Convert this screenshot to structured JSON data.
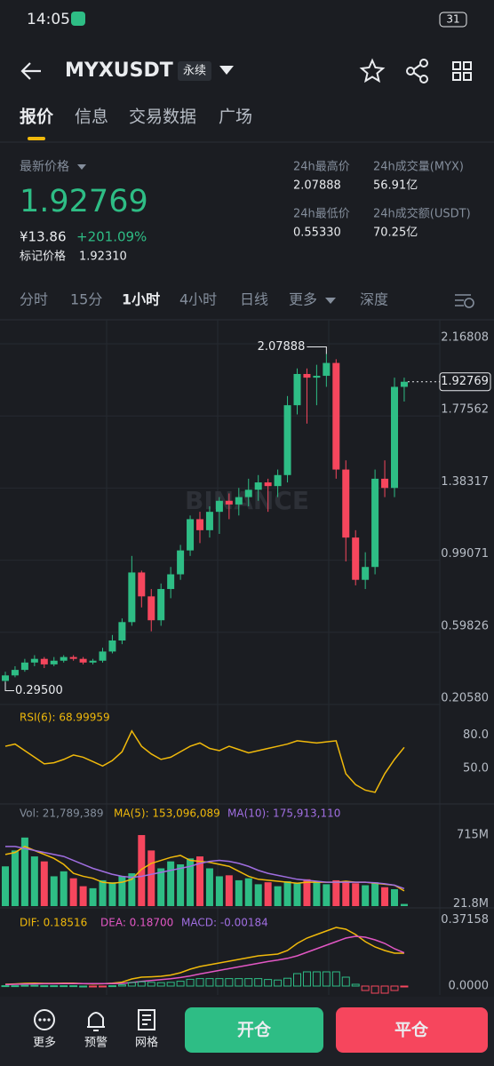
{
  "status_bar": {
    "time": "14:05",
    "battery": "31"
  },
  "header": {
    "symbol": "MYXUSDT",
    "tag": "永续"
  },
  "tabs": [
    {
      "label": "报价",
      "active": true
    },
    {
      "label": "信息",
      "active": false
    },
    {
      "label": "交易数据",
      "active": false
    },
    {
      "label": "广场",
      "active": false
    }
  ],
  "price_panel": {
    "last_price_label": "最新价格",
    "last_price": "1.92769",
    "cny": "¥13.86",
    "change": "+201.09%",
    "mark_label": "标记价格",
    "mark_price": "1.92310",
    "stats": [
      {
        "label": "24h最高价",
        "value": "2.07888"
      },
      {
        "label": "24h成交量(MYX)",
        "value": "56.91亿"
      },
      {
        "label": "24h最低价",
        "value": "0.55330"
      },
      {
        "label": "24h成交额(USDT)",
        "value": "70.25亿"
      }
    ]
  },
  "intervals": [
    {
      "label": "分时",
      "active": false
    },
    {
      "label": "15分",
      "active": false
    },
    {
      "label": "1小时",
      "active": true
    },
    {
      "label": "4小时",
      "active": false
    },
    {
      "label": "日线",
      "active": false
    },
    {
      "label": "更多",
      "active": false
    },
    {
      "label": "深度",
      "active": false
    }
  ],
  "chart_data": [
    {
      "type": "candlestick",
      "watermark": "BINANCE",
      "up_color": "#2ebd85",
      "down_color": "#f6465d",
      "high_label": "2.07888",
      "low_label": "0.29500",
      "last_label": "1.92769",
      "ylim": [
        0.2058,
        2.16808
      ],
      "yticks": [
        2.16808,
        1.77562,
        1.38317,
        0.99071,
        0.59826,
        {
          "value": 0.2058,
          "label": "0.20580"
        }
      ],
      "open": [
        0.3,
        0.33,
        0.36,
        0.4,
        0.42,
        0.39,
        0.41,
        0.43,
        0.42,
        0.4,
        0.41,
        0.46,
        0.52,
        0.62,
        0.89,
        0.76,
        0.63,
        0.8,
        0.88,
        1.01,
        1.18,
        1.12,
        1.22,
        1.28,
        1.26,
        1.3,
        1.34,
        1.38,
        1.36,
        1.42,
        1.8,
        1.97,
        1.95,
        1.96,
        2.03,
        1.45,
        1.08,
        0.85,
        0.92,
        1.4,
        1.35,
        1.9
      ],
      "high": [
        0.35,
        0.38,
        0.42,
        0.44,
        0.43,
        0.43,
        0.44,
        0.44,
        0.43,
        0.42,
        0.48,
        0.55,
        0.64,
        0.98,
        0.9,
        0.8,
        0.83,
        0.92,
        1.04,
        1.2,
        1.22,
        1.25,
        1.3,
        1.32,
        1.35,
        1.4,
        1.42,
        1.4,
        1.45,
        1.85,
        2.0,
        2.0,
        2.02,
        2.07888,
        2.05,
        1.5,
        1.12,
        1.0,
        1.45,
        1.5,
        1.95,
        1.95
      ],
      "low": [
        0.295,
        0.32,
        0.35,
        0.38,
        0.37,
        0.38,
        0.4,
        0.41,
        0.39,
        0.39,
        0.4,
        0.45,
        0.5,
        0.6,
        0.7,
        0.57,
        0.6,
        0.75,
        0.85,
        0.98,
        1.05,
        1.08,
        1.1,
        1.18,
        1.2,
        1.25,
        1.28,
        1.22,
        1.3,
        1.38,
        1.75,
        1.7,
        1.8,
        1.9,
        1.4,
        0.95,
        0.82,
        0.8,
        0.88,
        1.3,
        1.3,
        1.82
      ],
      "close": [
        0.33,
        0.36,
        0.4,
        0.42,
        0.39,
        0.41,
        0.43,
        0.42,
        0.4,
        0.41,
        0.46,
        0.52,
        0.62,
        0.89,
        0.76,
        0.63,
        0.8,
        0.88,
        1.01,
        1.18,
        1.12,
        1.22,
        1.28,
        1.26,
        1.3,
        1.34,
        1.38,
        1.36,
        1.42,
        1.8,
        1.97,
        1.95,
        1.96,
        2.03,
        1.45,
        1.08,
        0.85,
        0.92,
        1.4,
        1.35,
        1.9,
        1.92769
      ]
    },
    {
      "type": "line",
      "title": "RSI(6): 68.99959",
      "color": "#f0b90b",
      "ylim": [
        15,
        100
      ],
      "yticks": [
        {
          "value": 80,
          "label": "80.0"
        },
        {
          "value": 50,
          "label": "50.0"
        }
      ],
      "values": [
        70,
        72,
        66,
        60,
        54,
        55,
        58,
        62,
        60,
        56,
        52,
        57,
        65,
        84,
        70,
        63,
        58,
        60,
        65,
        70,
        73,
        68,
        66,
        70,
        67,
        64,
        66,
        68,
        70,
        72,
        75,
        74,
        73,
        74,
        75,
        45,
        35,
        30,
        28,
        45,
        58,
        68.99959
      ]
    },
    {
      "type": "bar",
      "ylim": [
        0,
        760
      ],
      "yticks": [
        {
          "value": 715,
          "label": "715M"
        },
        {
          "value": 21.8,
          "label": "21.8M"
        }
      ],
      "label": "Vol: 21,789,389",
      "values": [
        400,
        560,
        690,
        500,
        450,
        300,
        350,
        280,
        200,
        180,
        260,
        240,
        300,
        330,
        715,
        560,
        380,
        450,
        420,
        480,
        500,
        380,
        300,
        310,
        260,
        280,
        220,
        240,
        200,
        250,
        230,
        270,
        240,
        220,
        260,
        250,
        230,
        210,
        240,
        190,
        170,
        21.79
      ],
      "series": [
        {
          "name": "MA(5): 153,096,089",
          "color": "#f0b90b",
          "values": [
            520,
            540,
            600,
            560,
            520,
            480,
            420,
            330,
            300,
            280,
            240,
            230,
            240,
            270,
            370,
            430,
            460,
            490,
            510,
            460,
            450,
            440,
            420,
            400,
            350,
            300,
            270,
            260,
            250,
            240,
            230,
            240,
            240,
            240,
            240,
            250,
            240,
            240,
            230,
            220,
            210,
            153.1
          ]
        },
        {
          "name": "MA(10): 175,913,110",
          "color": "#a06ee1",
          "values": [
            600,
            600,
            580,
            560,
            540,
            520,
            500,
            460,
            420,
            380,
            350,
            320,
            300,
            290,
            300,
            320,
            340,
            360,
            380,
            400,
            430,
            450,
            460,
            450,
            430,
            400,
            360,
            330,
            310,
            290,
            270,
            260,
            250,
            240,
            240,
            240,
            240,
            240,
            235,
            225,
            210,
            175.9
          ]
        }
      ]
    },
    {
      "type": "macd",
      "ylim": [
        -0.05,
        0.4
      ],
      "yticks": [
        0.37158,
        {
          "value": 0,
          "label": "0.0000"
        }
      ],
      "series": [
        {
          "name": "DIF: 0.18516",
          "color": "#f0b90b",
          "values": [
            0.01,
            0.012,
            0.015,
            0.016,
            0.015,
            0.015,
            0.016,
            0.016,
            0.014,
            0.012,
            0.013,
            0.016,
            0.022,
            0.04,
            0.05,
            0.052,
            0.055,
            0.062,
            0.075,
            0.095,
            0.11,
            0.12,
            0.13,
            0.14,
            0.15,
            0.16,
            0.17,
            0.175,
            0.18,
            0.2,
            0.24,
            0.27,
            0.29,
            0.31,
            0.33,
            0.32,
            0.29,
            0.25,
            0.22,
            0.2,
            0.185,
            0.18516
          ]
        },
        {
          "name": "DEA: 0.18700",
          "color": "#e257c4",
          "values": [
            0.008,
            0.01,
            0.011,
            0.012,
            0.013,
            0.013,
            0.014,
            0.014,
            0.014,
            0.014,
            0.014,
            0.014,
            0.015,
            0.02,
            0.026,
            0.031,
            0.036,
            0.041,
            0.048,
            0.057,
            0.068,
            0.078,
            0.088,
            0.098,
            0.108,
            0.118,
            0.128,
            0.138,
            0.146,
            0.156,
            0.17,
            0.19,
            0.21,
            0.23,
            0.25,
            0.27,
            0.28,
            0.275,
            0.26,
            0.24,
            0.21,
            0.187
          ]
        },
        {
          "name": "MACD: -0.00184",
          "color": "#a06ee1",
          "values": [
            0.002,
            0.002,
            0.004,
            0.004,
            0.002,
            0.002,
            0.002,
            0.002,
            0,
            -0.002,
            -0.001,
            0.002,
            0.007,
            0.02,
            0.024,
            0.021,
            0.019,
            0.021,
            0.027,
            0.038,
            0.042,
            0.042,
            0.042,
            0.042,
            0.042,
            0.042,
            0.042,
            0.037,
            0.034,
            0.044,
            0.07,
            0.08,
            0.08,
            0.08,
            0.08,
            0.05,
            0.01,
            -0.025,
            -0.04,
            -0.04,
            -0.025,
            -0.00184
          ]
        }
      ]
    }
  ],
  "bottom_bar": {
    "nav": [
      "更多",
      "预警",
      "网格"
    ],
    "buy": "开仓",
    "sell": "平仓"
  }
}
